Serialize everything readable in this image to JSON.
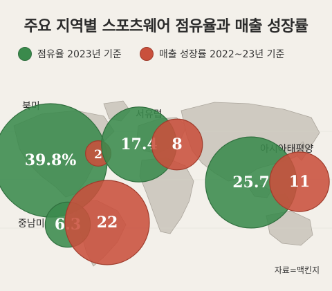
{
  "title": "주요 지역별 스포츠웨어 점유율과 매출 성장률",
  "legend": [
    {
      "label": "점유율 2023년 기준",
      "color": "#3a8a4c"
    },
    {
      "label": "매출 성장률 2022~23년 기준",
      "color": "#c9503c"
    }
  ],
  "source": "자료=맥킨지",
  "chart_data": {
    "type": "bubble",
    "series": [
      {
        "name": "점유율 2023년 기준",
        "unit": "%"
      },
      {
        "name": "매출 성장률 2022~23년 기준",
        "unit": "%"
      }
    ],
    "regions": [
      {
        "name": "북미",
        "share": 39.8,
        "share_label": "39.8%",
        "growth": 2,
        "growth_label": "2"
      },
      {
        "name": "서유럽",
        "share": 17.4,
        "share_label": "17.4",
        "growth": 8,
        "growth_label": "8"
      },
      {
        "name": "아시아태평양",
        "share": 25.7,
        "share_label": "25.7",
        "growth": 11,
        "growth_label": "11"
      },
      {
        "name": "중남미",
        "share": 6.3,
        "share_label": "6.3",
        "growth": 22,
        "growth_label": "22"
      }
    ],
    "colors": {
      "share": "#3a8a4c",
      "growth": "#c9503c"
    }
  }
}
